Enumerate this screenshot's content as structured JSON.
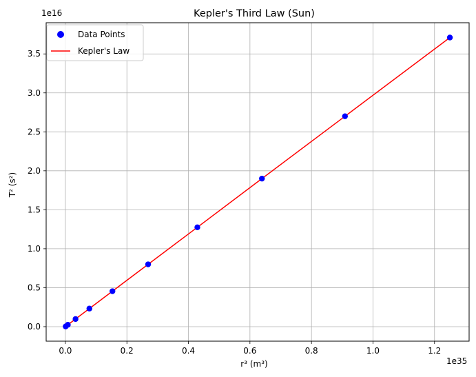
{
  "chart_data": {
    "type": "scatter",
    "title": "Kepler's Third Law (Sun)",
    "xlabel": "r³ (m³)",
    "ylabel": "T² (s²)",
    "x_offset_label": "1e35",
    "y_offset_label": "1e16",
    "x_scale": 1e+35,
    "y_scale": 1e+16,
    "xlim": [
      -0.0625,
      1.3125
    ],
    "ylim": [
      -0.186,
      3.9
    ],
    "x_ticks": [
      0.0,
      0.2,
      0.4,
      0.6,
      0.8,
      1.0,
      1.2
    ],
    "x_tick_labels": [
      "0.0",
      "0.2",
      "0.4",
      "0.6",
      "0.8",
      "1.0",
      "1.2"
    ],
    "y_ticks": [
      0.0,
      0.5,
      1.0,
      1.5,
      2.0,
      2.5,
      3.0,
      3.5
    ],
    "y_tick_labels": [
      "0.0",
      "0.5",
      "1.0",
      "1.5",
      "2.0",
      "2.5",
      "3.0",
      "3.5"
    ],
    "grid": true,
    "legend_position": "top-left",
    "series": [
      {
        "name": "Data Points",
        "type": "scatter",
        "color": "#0000ff",
        "x": [
          0.001,
          0.008,
          0.033,
          0.078,
          0.153,
          0.269,
          0.429,
          0.639,
          0.909,
          1.25
        ],
        "y": [
          0.003,
          0.024,
          0.098,
          0.232,
          0.455,
          0.8,
          1.275,
          1.9,
          2.7,
          3.71
        ]
      },
      {
        "name": "Kepler's Law",
        "type": "line",
        "color": "#ff0000",
        "x": [
          0.001,
          0.008,
          0.033,
          0.078,
          0.153,
          0.269,
          0.429,
          0.639,
          0.909,
          1.25
        ],
        "y": [
          0.003,
          0.024,
          0.098,
          0.232,
          0.455,
          0.8,
          1.275,
          1.9,
          2.7,
          3.71
        ]
      }
    ]
  }
}
